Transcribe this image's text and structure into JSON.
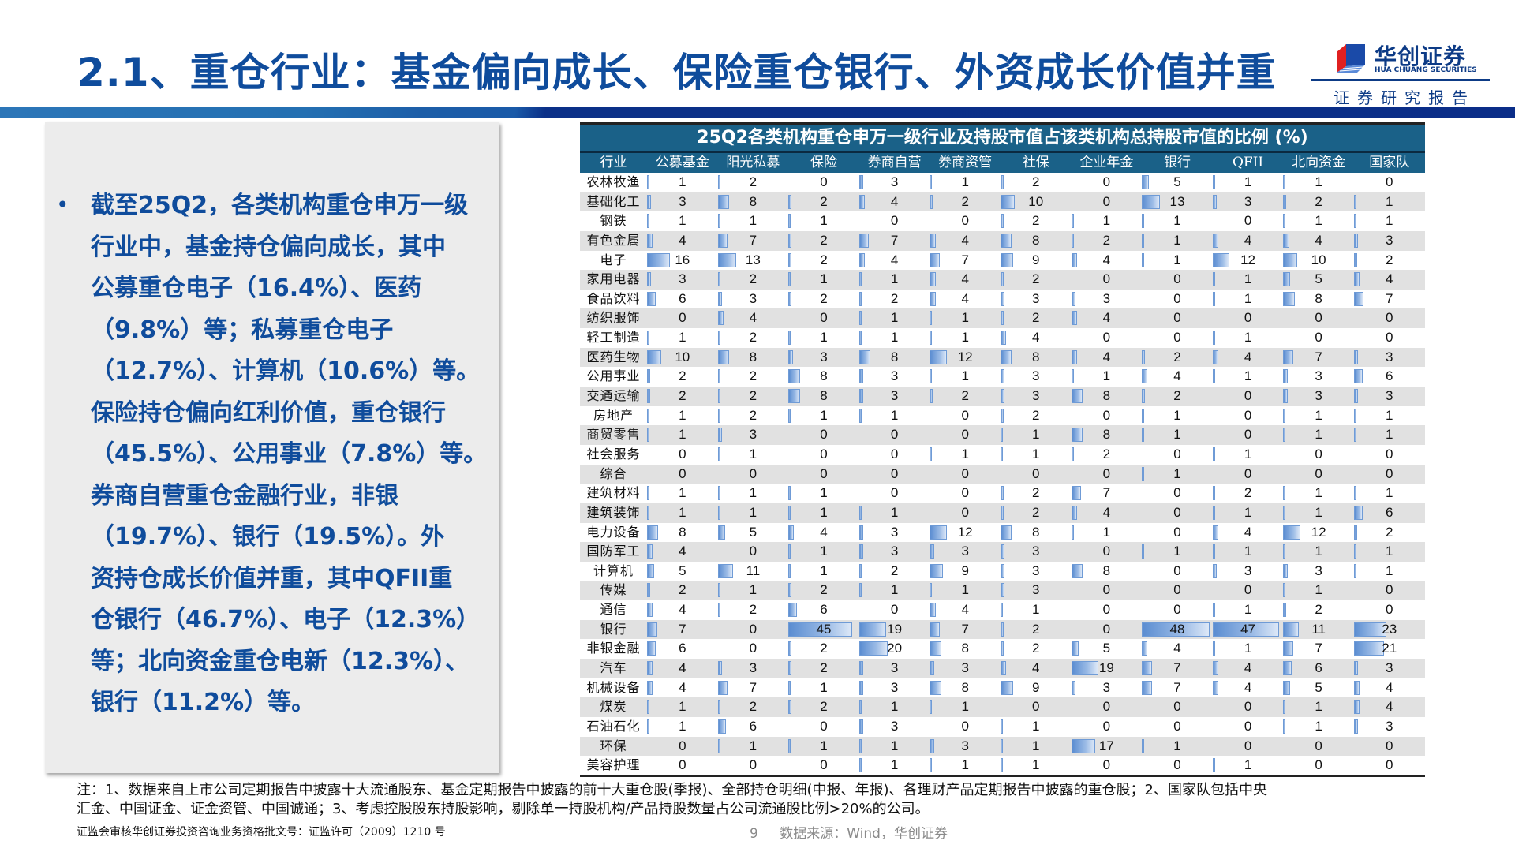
{
  "header": {
    "title": "2.1、重仓行业：基金偏向成长、保险重仓银行、外资成长价值并重",
    "logo_cn": "华创证券",
    "logo_en": "HUA CHUANG SECURITIES",
    "logo_sub": "证券研究报告"
  },
  "summary": {
    "bullet": "•",
    "lines": [
      "截至25Q2，各类机构重仓申万一级",
      "行业中，基金持仓偏向成长，其中",
      "公募重仓电子（16.4%）、医药",
      "（9.8%）等；私募重仓电子",
      "（12.7%）、计算机（10.6%）等。",
      "保险持仓偏向红利价值，重仓银行",
      "（45.5%）、公用事业（7.8%）等。",
      "券商自营重仓金融行业，非银",
      "（19.7%）、银行（19.5%）。外",
      "资持仓成长价值并重，其中QFII重",
      "仓银行（46.7%）、电子（12.3%）",
      "等；北向资金重仓电新（12.3%）、",
      "银行（11.2%）等。"
    ]
  },
  "chart_data": {
    "type": "table",
    "title": "25Q2各类机构重仓申万一级行业及持股市值占该类机构总持股市值的比例 (%)",
    "columns": [
      "行业",
      "公募基金",
      "阳光私募",
      "保险",
      "券商自营",
      "券商资管",
      "社保",
      "企业年金",
      "银行",
      "QFII",
      "北向资金",
      "国家队"
    ],
    "rows": [
      {
        "industry": "农林牧渔",
        "values": [
          1,
          2,
          0,
          3,
          1,
          2,
          0,
          5,
          1,
          1,
          0
        ]
      },
      {
        "industry": "基础化工",
        "values": [
          3,
          8,
          2,
          4,
          2,
          10,
          0,
          13,
          3,
          2,
          1
        ]
      },
      {
        "industry": "钢铁",
        "values": [
          1,
          1,
          1,
          0,
          0,
          2,
          1,
          1,
          0,
          1,
          1
        ]
      },
      {
        "industry": "有色金属",
        "values": [
          4,
          7,
          2,
          7,
          4,
          8,
          2,
          1,
          4,
          4,
          3
        ]
      },
      {
        "industry": "电子",
        "values": [
          16,
          13,
          2,
          4,
          7,
          9,
          4,
          1,
          12,
          10,
          2
        ]
      },
      {
        "industry": "家用电器",
        "values": [
          3,
          2,
          1,
          1,
          4,
          2,
          0,
          0,
          1,
          5,
          4
        ]
      },
      {
        "industry": "食品饮料",
        "values": [
          6,
          3,
          2,
          2,
          4,
          3,
          3,
          0,
          1,
          8,
          7
        ]
      },
      {
        "industry": "纺织服饰",
        "values": [
          0,
          4,
          0,
          1,
          1,
          2,
          4,
          0,
          0,
          0,
          0
        ]
      },
      {
        "industry": "轻工制造",
        "values": [
          1,
          2,
          1,
          1,
          1,
          4,
          0,
          0,
          1,
          0,
          0
        ]
      },
      {
        "industry": "医药生物",
        "values": [
          10,
          8,
          3,
          8,
          12,
          8,
          4,
          2,
          4,
          7,
          3
        ]
      },
      {
        "industry": "公用事业",
        "values": [
          2,
          2,
          8,
          3,
          1,
          3,
          1,
          4,
          1,
          3,
          6
        ]
      },
      {
        "industry": "交通运输",
        "values": [
          2,
          2,
          8,
          3,
          2,
          3,
          8,
          2,
          0,
          3,
          3
        ]
      },
      {
        "industry": "房地产",
        "values": [
          1,
          2,
          1,
          1,
          0,
          2,
          0,
          1,
          0,
          1,
          1
        ]
      },
      {
        "industry": "商贸零售",
        "values": [
          1,
          3,
          0,
          0,
          0,
          1,
          8,
          1,
          0,
          1,
          1
        ]
      },
      {
        "industry": "社会服务",
        "values": [
          0,
          1,
          0,
          0,
          1,
          1,
          2,
          0,
          1,
          0,
          0
        ]
      },
      {
        "industry": "综合",
        "values": [
          0,
          0,
          0,
          0,
          0,
          0,
          0,
          1,
          0,
          0,
          0
        ]
      },
      {
        "industry": "建筑材料",
        "values": [
          1,
          1,
          1,
          0,
          0,
          2,
          7,
          0,
          2,
          1,
          1
        ]
      },
      {
        "industry": "建筑装饰",
        "values": [
          1,
          1,
          1,
          1,
          0,
          2,
          4,
          0,
          1,
          1,
          6
        ]
      },
      {
        "industry": "电力设备",
        "values": [
          8,
          5,
          4,
          3,
          12,
          8,
          1,
          0,
          4,
          12,
          2
        ]
      },
      {
        "industry": "国防军工",
        "values": [
          4,
          0,
          1,
          3,
          3,
          3,
          0,
          1,
          1,
          1,
          1
        ]
      },
      {
        "industry": "计算机",
        "values": [
          5,
          11,
          1,
          2,
          9,
          3,
          8,
          0,
          3,
          3,
          1
        ]
      },
      {
        "industry": "传媒",
        "values": [
          2,
          1,
          2,
          1,
          1,
          3,
          0,
          0,
          0,
          1,
          0
        ]
      },
      {
        "industry": "通信",
        "values": [
          4,
          2,
          6,
          0,
          4,
          1,
          0,
          0,
          1,
          2,
          0
        ]
      },
      {
        "industry": "银行",
        "values": [
          7,
          0,
          45,
          19,
          7,
          2,
          0,
          48,
          47,
          11,
          23
        ]
      },
      {
        "industry": "非银金融",
        "values": [
          6,
          0,
          2,
          20,
          8,
          2,
          5,
          4,
          1,
          7,
          21
        ]
      },
      {
        "industry": "汽车",
        "values": [
          4,
          3,
          2,
          3,
          3,
          4,
          19,
          7,
          4,
          6,
          3
        ]
      },
      {
        "industry": "机械设备",
        "values": [
          4,
          7,
          1,
          3,
          8,
          9,
          3,
          7,
          4,
          5,
          4
        ]
      },
      {
        "industry": "煤炭",
        "values": [
          1,
          2,
          2,
          1,
          1,
          0,
          0,
          0,
          0,
          1,
          4
        ]
      },
      {
        "industry": "石油石化",
        "values": [
          1,
          6,
          0,
          3,
          0,
          1,
          0,
          0,
          0,
          1,
          3
        ]
      },
      {
        "industry": "环保",
        "values": [
          0,
          1,
          1,
          1,
          3,
          1,
          17,
          1,
          0,
          0,
          0
        ]
      },
      {
        "industry": "美容护理",
        "values": [
          0,
          0,
          0,
          1,
          1,
          1,
          0,
          0,
          1,
          0,
          0
        ]
      }
    ],
    "bar_scale_max": 50,
    "bar_color": "#5b8dd1"
  },
  "footer": {
    "note_line1": "注：1、数据来自上市公司定期报告中披露十大流通股东、基金定期报告中披露的前十大重仓股(季报)、全部持仓明细(中报、年报)、各理财产品定期报告中披露的重仓股；2、国家队包括中央",
    "note_line2": "汇金、中国证金、证金资管、中国诚通；3、考虑控股股东持股影响，剔除单一持股机构/产品持股数量占公司流通股比例>20%的公司。",
    "cert": "证监会审核华创证券投资咨询业务资格批文号：证监许可（2009）1210 号",
    "page_number": "9",
    "source": "数据来源：Wind，华创证券"
  },
  "colors": {
    "title_blue": "#0f4c9c",
    "table_header": "#1a6188",
    "row_alt": "#e1e1e1",
    "panel_bg": "#ececec"
  }
}
